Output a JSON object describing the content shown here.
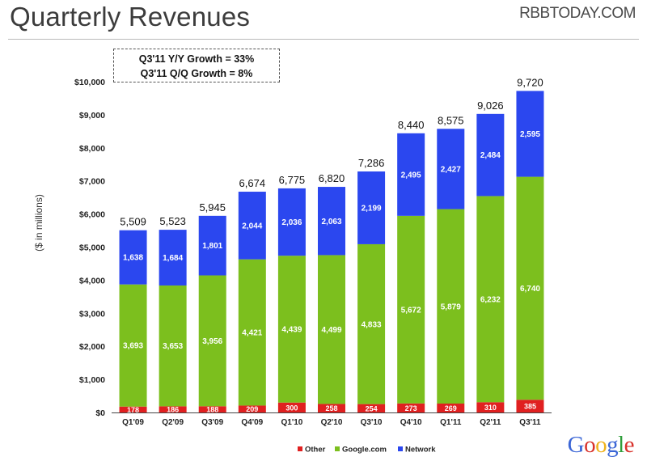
{
  "header": {
    "title": "Quarterly Revenues",
    "watermark": "RBBTODAY.COM"
  },
  "callout": {
    "line1": "Q3'11 Y/Y Growth = 33%",
    "line2": "Q3'11 Q/Q Growth = 8%"
  },
  "logo": {
    "text": "Google",
    "letters": [
      "G",
      "o",
      "o",
      "g",
      "l",
      "e"
    ],
    "colors": [
      "#3b66d6",
      "#d8322b",
      "#efb21c",
      "#3b66d6",
      "#2f9e3b",
      "#d8322b"
    ]
  },
  "colors": {
    "Other": "#e02020",
    "Google.com": "#7cbf1e",
    "Network": "#2b47ef"
  },
  "chart_data": {
    "type": "bar",
    "stacked": true,
    "title": "",
    "xlabel": "",
    "ylabel": "($ in millions)",
    "ylim": [
      0,
      10000
    ],
    "yticks": [
      "$0",
      "$1,000",
      "$2,000",
      "$3,000",
      "$4,000",
      "$5,000",
      "$6,000",
      "$7,000",
      "$8,000",
      "$9,000",
      "$10,000"
    ],
    "ytick_values": [
      0,
      1000,
      2000,
      3000,
      4000,
      5000,
      6000,
      7000,
      8000,
      9000,
      10000
    ],
    "categories": [
      "Q1'09",
      "Q2'09",
      "Q3'09",
      "Q4'09",
      "Q1'10",
      "Q2'10",
      "Q3'10",
      "Q4'10",
      "Q1'11",
      "Q2'11",
      "Q3'11"
    ],
    "series": [
      {
        "name": "Other",
        "values": [
          178,
          186,
          188,
          209,
          300,
          258,
          254,
          273,
          269,
          310,
          385
        ],
        "labels": [
          "178",
          "186",
          "188",
          "209",
          "300",
          "258",
          "254",
          "273",
          "269",
          "310",
          "385"
        ]
      },
      {
        "name": "Google.com",
        "values": [
          3693,
          3653,
          3956,
          4421,
          4439,
          4499,
          4833,
          5672,
          5879,
          6232,
          6740
        ],
        "labels": [
          "3,693",
          "3,653",
          "3,956",
          "4,421",
          "4,439",
          "4,499",
          "4,833",
          "5,672",
          "5,879",
          "6,232",
          "6,740"
        ]
      },
      {
        "name": "Network",
        "values": [
          1638,
          1684,
          1801,
          2044,
          2036,
          2063,
          2199,
          2495,
          2427,
          2484,
          2595
        ],
        "labels": [
          "1,638",
          "1,684",
          "1,801",
          "2,044",
          "2,036",
          "2,063",
          "2,199",
          "2,495",
          "2,427",
          "2,484",
          "2,595"
        ]
      }
    ],
    "totals": [
      5509,
      5523,
      5945,
      6674,
      6775,
      6820,
      7286,
      8440,
      8575,
      9026,
      9720
    ],
    "total_labels": [
      "5,509",
      "5,523",
      "5,945",
      "6,674",
      "6,775",
      "6,820",
      "7,286",
      "8,440",
      "8,575",
      "9,026",
      "9,720"
    ],
    "legend": [
      "Other",
      "Google.com",
      "Network"
    ],
    "legend_position": "bottom-center",
    "grid": false
  }
}
